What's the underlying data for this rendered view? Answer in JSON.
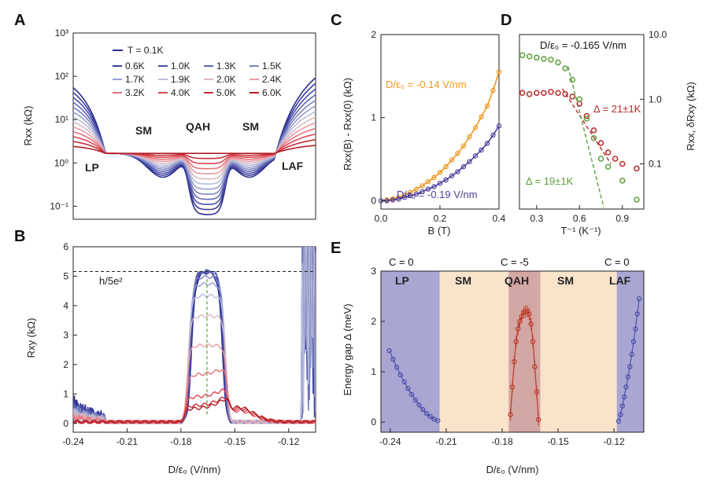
{
  "chart_data": [
    {
      "panel": "A",
      "type": "line",
      "xlabel": "",
      "ylabel": "Rxx (kΩ)",
      "yscale": "log",
      "ylim": [
        0.05,
        1000
      ],
      "xlim": [
        -0.24,
        -0.105
      ],
      "yticks": [
        "10³",
        "10²",
        "10¹",
        "10⁰",
        "10⁻¹"
      ],
      "legend_title": "T = 0.1K",
      "temperatures": [
        "0.6K",
        "1.0K",
        "1.3K",
        "1.5K",
        "1.7K",
        "1.9K",
        "2.0K",
        "2.4K",
        "3.2K",
        "4.0K",
        "5.0K",
        "6.0K"
      ],
      "colors": [
        "#2b2d8f",
        "#3a3d9a",
        "#4a4fa6",
        "#6068b4",
        "#7c84c2",
        "#9aa0cf",
        "#b8bcda",
        "#d8b8c4",
        "#e99aa4",
        "#e57079",
        "#d94852",
        "#c62f38",
        "#b01f28"
      ],
      "regions": [
        "LP",
        "SM",
        "QAH",
        "SM",
        "LAF"
      ]
    },
    {
      "panel": "B",
      "type": "line",
      "xlabel": "D/ε₀ (V/nm)",
      "ylabel": "Rxy (kΩ)",
      "ylim": [
        -0.3,
        6
      ],
      "yticks": [
        0,
        1,
        2,
        3,
        4,
        5,
        6
      ],
      "xticks": [
        "-0.24",
        "-0.21",
        "-0.18",
        "-0.15",
        "-0.12"
      ],
      "xticks_values": [
        -0.24,
        -0.21,
        -0.18,
        -0.15,
        -0.12
      ],
      "quantized_line_label": "h/5e²",
      "quantized_value": 5.16,
      "plateau_values": [
        5.16,
        5.16,
        5.16,
        5.16,
        4.95,
        4.7,
        4.3,
        3.6,
        2.6,
        1.6,
        0.85,
        0.55,
        0.45
      ]
    },
    {
      "panel": "C",
      "type": "scatter",
      "xlabel": "B (T)",
      "ylabel": "Rxx(B) - Rxx(0) (kΩ)",
      "xlim": [
        0,
        0.4
      ],
      "ylim": [
        -0.1,
        2
      ],
      "xticks": [
        "0.0",
        "0.2",
        "0.4"
      ],
      "yticks": [
        "0",
        "1",
        "2"
      ],
      "series": [
        {
          "name": "D/ε₀ = -0.14 V/nm",
          "color": "#f0961e",
          "x": [
            0.0,
            0.02,
            0.04,
            0.06,
            0.08,
            0.1,
            0.12,
            0.14,
            0.16,
            0.18,
            0.2,
            0.22,
            0.24,
            0.26,
            0.28,
            0.3,
            0.32,
            0.34,
            0.36,
            0.38,
            0.4
          ],
          "y": [
            0.0,
            0.01,
            0.02,
            0.04,
            0.07,
            0.1,
            0.14,
            0.18,
            0.23,
            0.28,
            0.34,
            0.41,
            0.49,
            0.57,
            0.66,
            0.77,
            0.88,
            1.01,
            1.14,
            1.33,
            1.55
          ]
        },
        {
          "name": "D/ε₀ = -0.19 V/nm",
          "color": "#4b3f9c",
          "x": [
            0.0,
            0.02,
            0.04,
            0.06,
            0.08,
            0.1,
            0.12,
            0.14,
            0.16,
            0.18,
            0.2,
            0.22,
            0.24,
            0.26,
            0.28,
            0.3,
            0.32,
            0.34,
            0.36,
            0.38,
            0.4
          ],
          "y": [
            0.0,
            0.0,
            0.01,
            0.02,
            0.04,
            0.06,
            0.08,
            0.11,
            0.14,
            0.17,
            0.21,
            0.25,
            0.3,
            0.35,
            0.41,
            0.47,
            0.54,
            0.61,
            0.69,
            0.79,
            0.9
          ]
        }
      ]
    },
    {
      "panel": "D",
      "type": "scatter",
      "xlabel": "T⁻¹ (K⁻¹)",
      "ylabel_right": "Rxx, δRxy (kΩ)",
      "yscale": "log",
      "ylim": [
        0.02,
        10
      ],
      "xlim": [
        0.18,
        1.05
      ],
      "xticks": [
        "0.3",
        "0.6",
        "0.9"
      ],
      "yticks": [
        "10.0",
        "1.0",
        "0.1"
      ],
      "title": "D/ε₀ = -0.165 V/nm",
      "series": [
        {
          "name": "Rxx",
          "color": "#b52b2b",
          "fit_label": "Δ = 21±1K",
          "x": [
            0.2,
            0.25,
            0.3,
            0.35,
            0.4,
            0.45,
            0.5,
            0.55,
            0.6,
            0.65,
            0.7,
            0.75,
            0.8,
            0.85,
            0.9,
            1.0
          ],
          "y": [
            1.25,
            1.2,
            1.25,
            1.25,
            1.3,
            1.25,
            1.2,
            1.1,
            0.85,
            0.55,
            0.33,
            0.21,
            0.15,
            0.12,
            0.1,
            0.085
          ]
        },
        {
          "name": "δRxy",
          "color": "#5e9e3a",
          "fit_label": "Δ = 19±1K",
          "x": [
            0.2,
            0.25,
            0.3,
            0.35,
            0.4,
            0.45,
            0.5,
            0.55,
            0.6,
            0.65,
            0.7,
            0.75,
            0.8,
            0.9,
            1.0
          ],
          "y": [
            4.8,
            4.6,
            4.4,
            4.2,
            4.1,
            3.7,
            3.0,
            2.0,
            1.0,
            0.5,
            0.25,
            0.12,
            0.09,
            0.055,
            0.028
          ]
        }
      ]
    },
    {
      "panel": "E",
      "type": "scatter",
      "xlabel": "D/ε₀ (V/nm)",
      "ylabel": "Energy gap Δ (meV)",
      "xlim": [
        -0.245,
        -0.104
      ],
      "ylim": [
        -0.2,
        3
      ],
      "xticks": [
        "-0.24",
        "-0.21",
        "-0.18",
        "-0.15",
        "-0.12"
      ],
      "xticks_values": [
        -0.24,
        -0.21,
        -0.18,
        -0.15,
        -0.12
      ],
      "yticks": [
        "0",
        "1",
        "2",
        "3"
      ],
      "chern": [
        "C = 0",
        "C = -5",
        "C = 0"
      ],
      "regions": [
        "LP",
        "SM",
        "QAH",
        "SM",
        "LAF"
      ],
      "region_colors": [
        "#aaa6d4",
        "#fae3cb",
        "#d2a7a4",
        "#fae3cb",
        "#aaa6d4"
      ],
      "series": [
        {
          "name": "LP",
          "color": "#4b4fa8",
          "x": [
            -0.2405,
            -0.2385,
            -0.2365,
            -0.2345,
            -0.2325,
            -0.2305,
            -0.2285,
            -0.2265,
            -0.2245,
            -0.2225,
            -0.2205,
            -0.2185,
            -0.2165,
            -0.2145
          ],
          "y": [
            1.42,
            1.25,
            1.09,
            0.94,
            0.8,
            0.67,
            0.55,
            0.44,
            0.34,
            0.25,
            0.17,
            0.11,
            0.06,
            0.03
          ]
        },
        {
          "name": "QAH",
          "color": "#c0392b",
          "x": [
            -0.1755,
            -0.1745,
            -0.1735,
            -0.1725,
            -0.1715,
            -0.1705,
            -0.1695,
            -0.1685,
            -0.1675,
            -0.1665,
            -0.1655,
            -0.1645,
            -0.1635,
            -0.1625,
            -0.1615,
            -0.1605
          ],
          "y": [
            0.15,
            0.7,
            1.2,
            1.6,
            1.85,
            2.0,
            2.1,
            2.18,
            2.2,
            2.2,
            2.15,
            1.95,
            1.6,
            1.1,
            0.6,
            0.05
          ]
        },
        {
          "name": "LAF",
          "color": "#4b4fa8",
          "x": [
            -0.1175,
            -0.1165,
            -0.1155,
            -0.1145,
            -0.1135,
            -0.1125,
            -0.1115,
            -0.1105,
            -0.1095,
            -0.1085,
            -0.1075,
            -0.1065
          ],
          "y": [
            0.02,
            0.15,
            0.32,
            0.5,
            0.7,
            0.9,
            1.1,
            1.35,
            1.6,
            1.85,
            2.15,
            2.45
          ]
        }
      ]
    }
  ]
}
